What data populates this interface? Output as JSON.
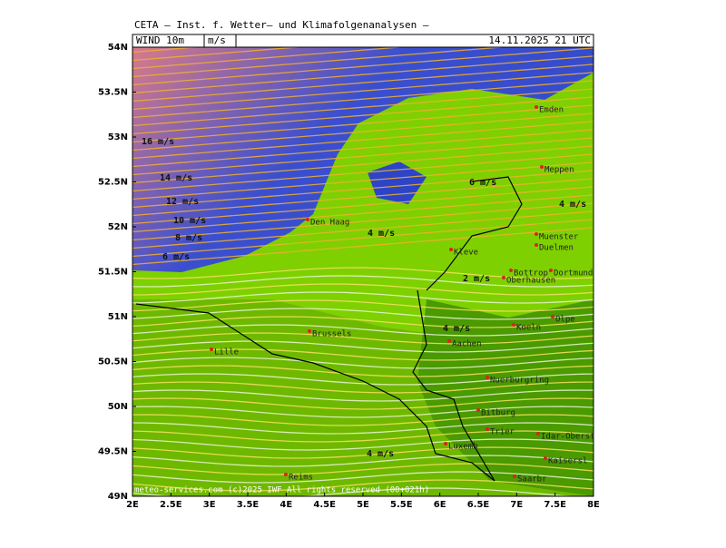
{
  "header": {
    "institute": "CETA — Inst. f. Wetter— und Klimafolgenanalysen —",
    "field": "WIND  10m",
    "unit": "m/s",
    "valid": "14.11.2025 21 UTC"
  },
  "axes": {
    "lat_labels": [
      "54N",
      "53.5N",
      "53N",
      "52.5N",
      "52N",
      "51.5N",
      "51N",
      "50.5N",
      "50N",
      "49.5N",
      "49N"
    ],
    "lon_labels": [
      "2E",
      "2.5E",
      "3E",
      "3.5E",
      "4E",
      "4.5E",
      "5E",
      "5.5E",
      "6E",
      "6.5E",
      "7E",
      "7.5E",
      "8E"
    ]
  },
  "contour_labels": [
    "16 m/s",
    "14 m/s",
    "12 m/s",
    "10 m/s",
    "8 m/s",
    "6 m/s",
    "6 m/s",
    "4 m/s",
    "4 m/s",
    "2 m/s",
    "4 m/s",
    "4 m/s"
  ],
  "places": [
    "Emden",
    "Meppen",
    "Muenster",
    "Duelmen",
    "Kleve",
    "Bottrop",
    "Oberhausen",
    "Dortmund",
    "Koeln",
    "Olpe",
    "Den Haag",
    "Brussels",
    "Lille",
    "Aachen",
    "Nuerburgring",
    "Bitburg",
    "Trier",
    "Idar-Oberst",
    "Kaisersl",
    "Saarbr",
    "Luxemb",
    "Reims"
  ],
  "footer": "meteo-services.com  (c)2025 IWF  All rights reserved  (00+021h)"
}
